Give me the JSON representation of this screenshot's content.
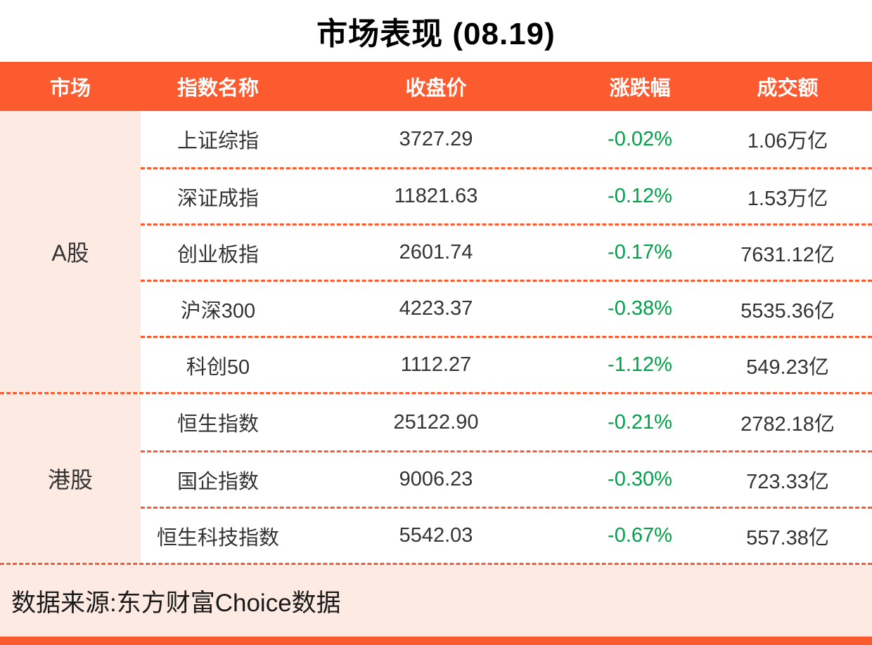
{
  "title": "市场表现 (08.19)",
  "table": {
    "headers": [
      "市场",
      "指数名称",
      "收盘价",
      "涨跌幅",
      "成交额"
    ],
    "groups": [
      {
        "market": "A股",
        "rows": [
          {
            "name": "上证综指",
            "close": "3727.29",
            "change": "-0.02%",
            "turnover": "1.06万亿"
          },
          {
            "name": "深证成指",
            "close": "11821.63",
            "change": "-0.12%",
            "turnover": "1.53万亿"
          },
          {
            "name": "创业板指",
            "close": "2601.74",
            "change": "-0.17%",
            "turnover": "7631.12亿"
          },
          {
            "name": "沪深300",
            "close": "4223.37",
            "change": "-0.38%",
            "turnover": "5535.36亿"
          },
          {
            "name": "科创50",
            "close": "1112.27",
            "change": "-1.12%",
            "turnover": "549.23亿"
          }
        ]
      },
      {
        "market": "港股",
        "rows": [
          {
            "name": "恒生指数",
            "close": "25122.90",
            "change": "-0.21%",
            "turnover": "2782.18亿"
          },
          {
            "name": "国企指数",
            "close": "9006.23",
            "change": "-0.30%",
            "turnover": "723.33亿"
          },
          {
            "name": "恒生科技指数",
            "close": "5542.03",
            "change": "-0.67%",
            "turnover": "557.38亿"
          }
        ]
      }
    ]
  },
  "footer": {
    "source": "数据来源:东方财富Choice数据"
  },
  "colors": {
    "accent": "#fb5b2f",
    "header_bg": "#fb5b2f",
    "market_col_bg": "#fdeae3",
    "footer_bg": "#fdeae3",
    "negative_green": "#00a04a",
    "text": "#333333"
  },
  "chart_data": {
    "type": "table",
    "title": "市场表现 (08.19)",
    "columns": [
      "市场",
      "指数名称",
      "收盘价",
      "涨跌幅",
      "成交额"
    ],
    "rows": [
      [
        "A股",
        "上证综指",
        3727.29,
        "-0.02%",
        "1.06万亿"
      ],
      [
        "A股",
        "深证成指",
        11821.63,
        "-0.12%",
        "1.53万亿"
      ],
      [
        "A股",
        "创业板指",
        2601.74,
        "-0.17%",
        "7631.12亿"
      ],
      [
        "A股",
        "沪深300",
        4223.37,
        "-0.38%",
        "5535.36亿"
      ],
      [
        "A股",
        "科创50",
        1112.27,
        "-1.12%",
        "549.23亿"
      ],
      [
        "港股",
        "恒生指数",
        25122.9,
        "-0.21%",
        "2782.18亿"
      ],
      [
        "港股",
        "国企指数",
        9006.23,
        "-0.30%",
        "723.33亿"
      ],
      [
        "港股",
        "恒生科技指数",
        5542.03,
        "-0.67%",
        "557.38亿"
      ]
    ],
    "source": "数据来源:东方财富Choice数据"
  }
}
